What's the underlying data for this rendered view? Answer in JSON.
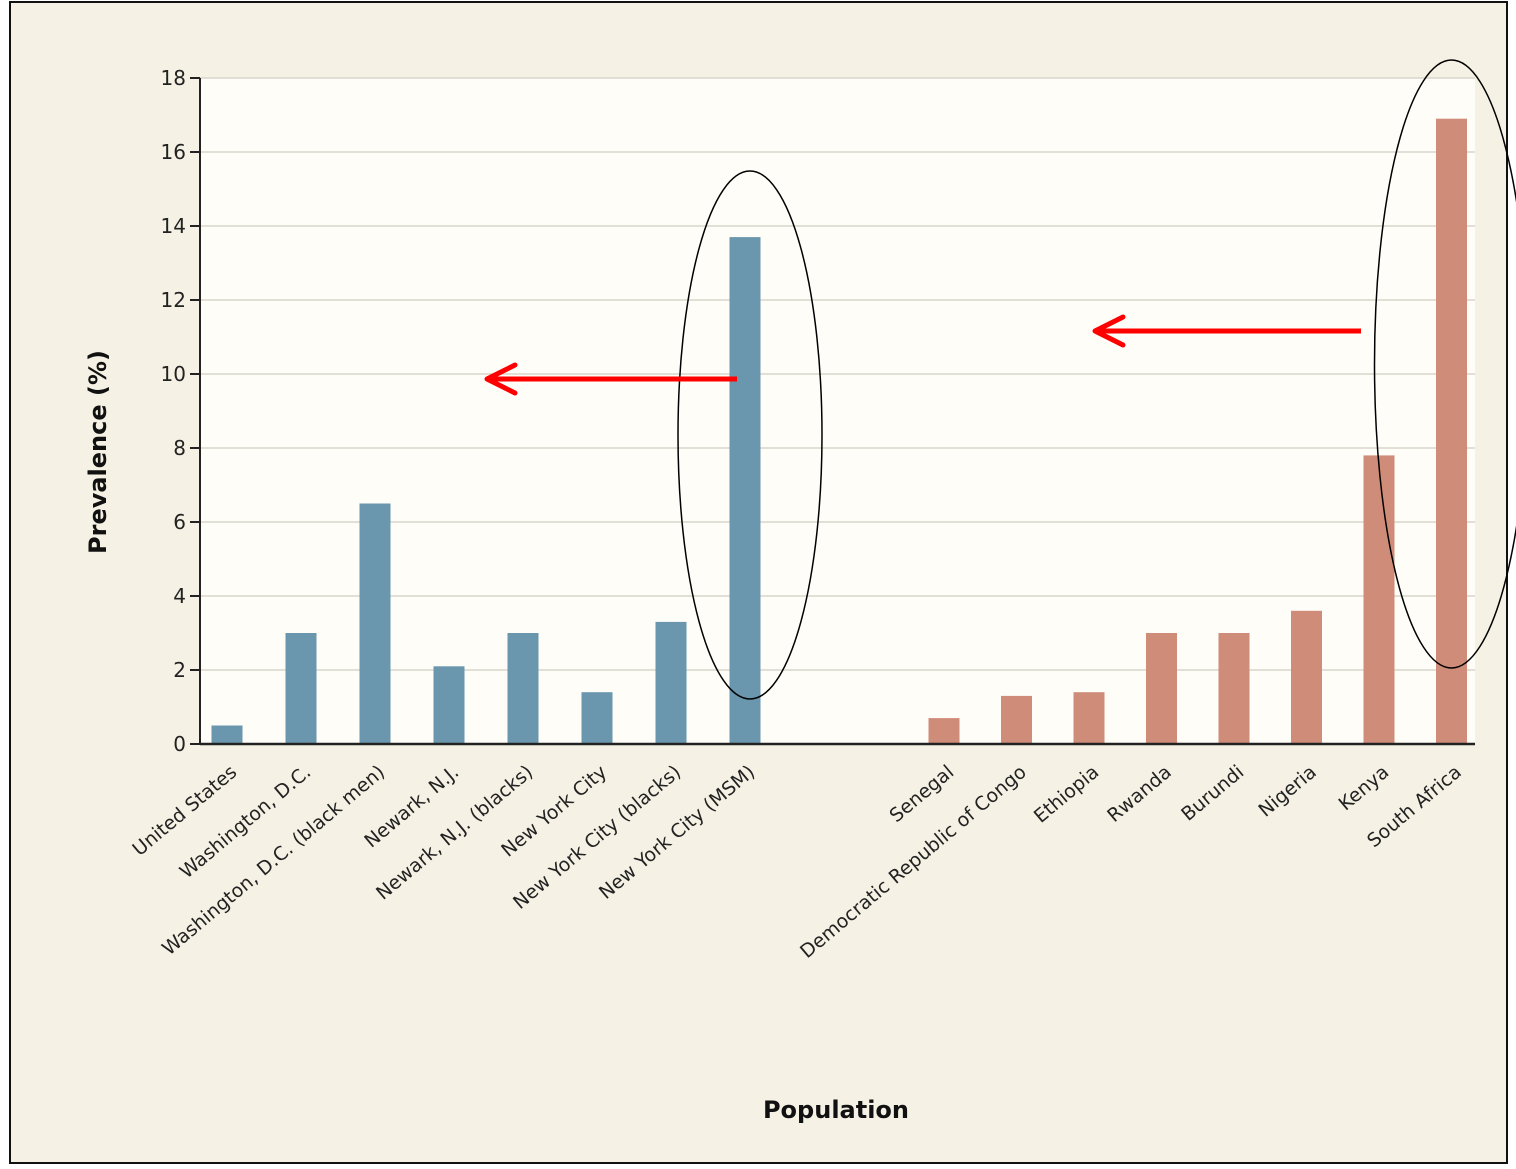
{
  "chart_data": {
    "type": "bar",
    "title": "",
    "xlabel": "Population",
    "ylabel": "Prevalence (%)",
    "ylim": [
      0,
      18
    ],
    "yticks": [
      0,
      2,
      4,
      6,
      8,
      10,
      12,
      14,
      16,
      18
    ],
    "grid": "horizontal",
    "legend": "none",
    "groups": [
      {
        "color": "#6a97ae",
        "categories": [
          "United States",
          "Washington, D.C.",
          "Washington, D.C. (black men)",
          "Newark, N.J.",
          "Newark, N.J. (blacks)",
          "New York City",
          "New York City (blacks)",
          "New York City (MSM)"
        ],
        "values": [
          0.5,
          3.0,
          6.5,
          2.1,
          3.0,
          1.4,
          3.3,
          13.7
        ]
      },
      {
        "color": "#cf8c78",
        "categories": [
          "Senegal",
          "Democratic Republic of Congo",
          "Ethiopia",
          "Rwanda",
          "Burundi",
          "Nigeria",
          "Kenya",
          "South Africa"
        ],
        "values": [
          0.7,
          1.3,
          1.4,
          3.0,
          3.0,
          3.6,
          7.8,
          16.9
        ]
      }
    ],
    "annotations": {
      "highlighted": [
        "New York City (MSM)",
        "South Africa"
      ],
      "arrow_color": "#ff0000",
      "ellipse_color": "#000000"
    }
  }
}
